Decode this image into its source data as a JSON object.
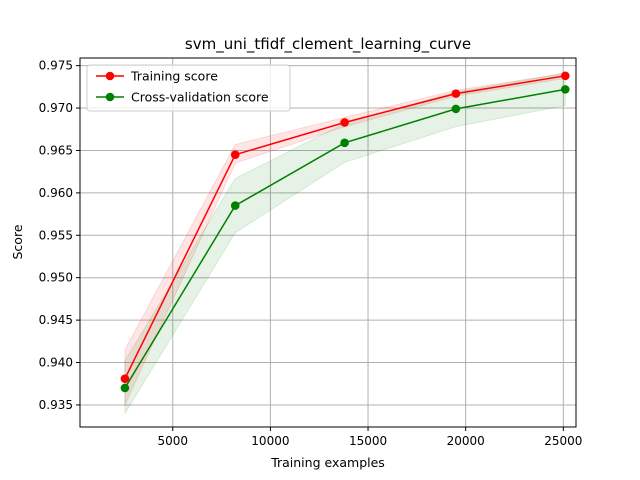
{
  "chart_data": {
    "type": "line",
    "title": "svm_uni_tfidf_clement_learning_curve",
    "xlabel": "Training examples",
    "ylabel": "Score",
    "xlim": [
      250,
      25650
    ],
    "ylim": [
      0.9324,
      0.9759
    ],
    "xticks": [
      5000,
      10000,
      15000,
      20000,
      25000
    ],
    "xtick_labels": [
      "5000",
      "10000",
      "15000",
      "20000",
      "25000"
    ],
    "yticks": [
      0.935,
      0.94,
      0.945,
      0.95,
      0.955,
      0.96,
      0.965,
      0.97,
      0.975
    ],
    "ytick_labels": [
      "0.935",
      "0.940",
      "0.945",
      "0.950",
      "0.955",
      "0.960",
      "0.965",
      "0.970",
      "0.975"
    ],
    "grid": true,
    "legend_position": "top-left",
    "x": [
      2550,
      8200,
      13800,
      19500,
      25100
    ],
    "series": [
      {
        "name": "Training score",
        "color": "#ff0000",
        "values": [
          0.9381,
          0.9645,
          0.9683,
          0.9717,
          0.9738
        ],
        "band_lower": [
          0.935,
          0.9635,
          0.9678,
          0.9714,
          0.9735
        ],
        "band_upper": [
          0.9415,
          0.9657,
          0.9689,
          0.9721,
          0.9741
        ]
      },
      {
        "name": "Cross-validation score",
        "color": "#008000",
        "values": [
          0.937,
          0.9585,
          0.9659,
          0.9699,
          0.9722
        ],
        "band_lower": [
          0.934,
          0.9553,
          0.9636,
          0.9678,
          0.9703
        ],
        "band_upper": [
          0.9402,
          0.9617,
          0.9682,
          0.9719,
          0.9741
        ]
      }
    ]
  }
}
